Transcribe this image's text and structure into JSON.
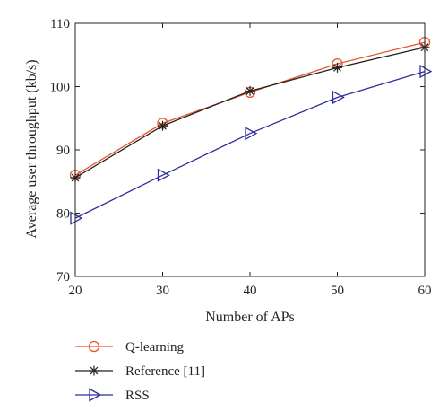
{
  "chart_data": {
    "type": "line",
    "title": "",
    "xlabel": "Number of APs",
    "ylabel": "Average user throughput (kb/s)",
    "x": [
      20,
      30,
      40,
      50,
      60
    ],
    "xlim": [
      20,
      60
    ],
    "ylim": [
      70,
      110
    ],
    "xticks": [
      "20",
      "30",
      "40",
      "50",
      "60"
    ],
    "yticks": [
      "70",
      "80",
      "90",
      "100",
      "110"
    ],
    "grid": false,
    "legend_position": "bottom-left, below plot",
    "series": [
      {
        "name": "Q-learning",
        "values": [
          86.0,
          94.2,
          99.1,
          103.6,
          107.0
        ],
        "color": "#e8542a",
        "marker": "circle-open"
      },
      {
        "name": "Reference [11]",
        "values": [
          85.6,
          93.8,
          99.3,
          103.0,
          106.2
        ],
        "color": "#222222",
        "marker": "asterisk"
      },
      {
        "name": "RSS",
        "values": [
          79.2,
          86.0,
          92.6,
          98.3,
          102.4
        ],
        "color": "#2e2e9e",
        "marker": "triangle-right-open"
      }
    ]
  }
}
